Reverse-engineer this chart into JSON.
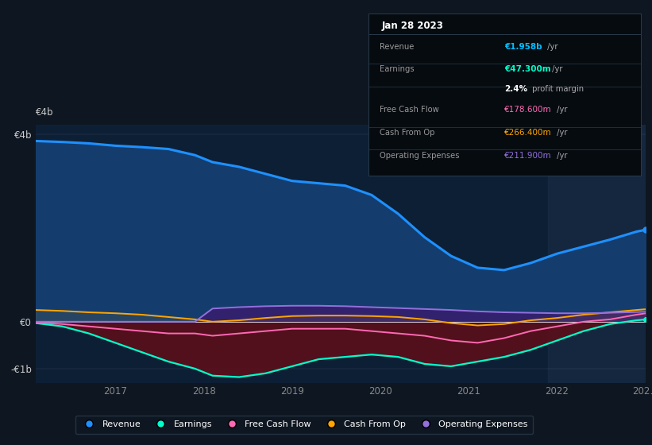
{
  "bg_color": "#0e1621",
  "plot_bg_color": "#0d1f35",
  "highlight_bg": "#1a2e47",
  "title_box_title": "Jan 28 2023",
  "title_box_rows": [
    {
      "label": "Revenue",
      "value": "€1.958b",
      "suffix": " /yr",
      "value_color": "#00bfff",
      "bold": true
    },
    {
      "label": "Earnings",
      "value": "€47.300m",
      "suffix": " /yr",
      "value_color": "#00ffcc",
      "bold": true
    },
    {
      "label": "",
      "value": "2.4%",
      "suffix": " profit margin",
      "value_color": "#ffffff",
      "bold": true
    },
    {
      "label": "Free Cash Flow",
      "value": "€178.600m",
      "suffix": " /yr",
      "value_color": "#ff69b4",
      "bold": false
    },
    {
      "label": "Cash From Op",
      "value": "€266.400m",
      "suffix": " /yr",
      "value_color": "#ffa500",
      "bold": false
    },
    {
      "label": "Operating Expenses",
      "value": "€211.900m",
      "suffix": " /yr",
      "value_color": "#9370db",
      "bold": false
    }
  ],
  "x_years": [
    2016.1,
    2016.4,
    2016.7,
    2017.0,
    2017.3,
    2017.6,
    2017.9,
    2018.1,
    2018.4,
    2018.7,
    2019.0,
    2019.3,
    2019.6,
    2019.9,
    2020.2,
    2020.5,
    2020.8,
    2021.1,
    2021.4,
    2021.7,
    2022.0,
    2022.3,
    2022.6,
    2022.9,
    2023.0
  ],
  "revenue": [
    3850,
    3830,
    3800,
    3750,
    3720,
    3680,
    3550,
    3400,
    3300,
    3150,
    3000,
    2950,
    2900,
    2700,
    2300,
    1800,
    1400,
    1150,
    1100,
    1250,
    1450,
    1600,
    1750,
    1920,
    1958
  ],
  "earnings": [
    -30,
    -100,
    -250,
    -450,
    -650,
    -850,
    -1000,
    -1150,
    -1180,
    -1100,
    -950,
    -800,
    -750,
    -700,
    -750,
    -900,
    -950,
    -850,
    -750,
    -600,
    -400,
    -200,
    -50,
    30,
    47
  ],
  "free_cash_flow": [
    -20,
    -50,
    -100,
    -150,
    -200,
    -250,
    -250,
    -300,
    -250,
    -200,
    -150,
    -150,
    -150,
    -200,
    -250,
    -300,
    -400,
    -450,
    -350,
    -200,
    -100,
    0,
    50,
    150,
    178
  ],
  "cash_from_op": [
    250,
    230,
    200,
    180,
    150,
    100,
    50,
    0,
    30,
    80,
    120,
    130,
    130,
    120,
    100,
    50,
    -30,
    -80,
    -50,
    30,
    80,
    150,
    200,
    250,
    266
  ],
  "op_expenses": [
    0,
    0,
    0,
    0,
    0,
    0,
    0,
    280,
    310,
    330,
    340,
    340,
    330,
    310,
    290,
    270,
    250,
    220,
    200,
    190,
    180,
    180,
    190,
    205,
    212
  ],
  "ylim": [
    -1300,
    4200
  ],
  "yticks": [
    -1000,
    0,
    4000
  ],
  "ytick_labels": [
    "-€1b",
    "€0",
    "€4b"
  ],
  "xtick_positions": [
    2017,
    2018,
    2019,
    2020,
    2021,
    2022,
    2023
  ],
  "xtick_labels": [
    "2017",
    "2018",
    "2019",
    "2020",
    "2021",
    "2022",
    "202…"
  ],
  "revenue_color": "#1e90ff",
  "revenue_fill": "#143d6e",
  "earnings_color": "#00ffcc",
  "earnings_neg_fill": "#5a0f1a",
  "free_cash_flow_color": "#ff69b4",
  "cash_from_op_color": "#ffa500",
  "op_expenses_color": "#9370db",
  "op_expenses_fill": "#3d1a6e",
  "shade_x0": 2021.9,
  "shade_x1": 2023.1,
  "legend_items": [
    {
      "label": "Revenue",
      "color": "#1e90ff"
    },
    {
      "label": "Earnings",
      "color": "#00ffcc"
    },
    {
      "label": "Free Cash Flow",
      "color": "#ff69b4"
    },
    {
      "label": "Cash From Op",
      "color": "#ffa500"
    },
    {
      "label": "Operating Expenses",
      "color": "#9370db"
    }
  ]
}
